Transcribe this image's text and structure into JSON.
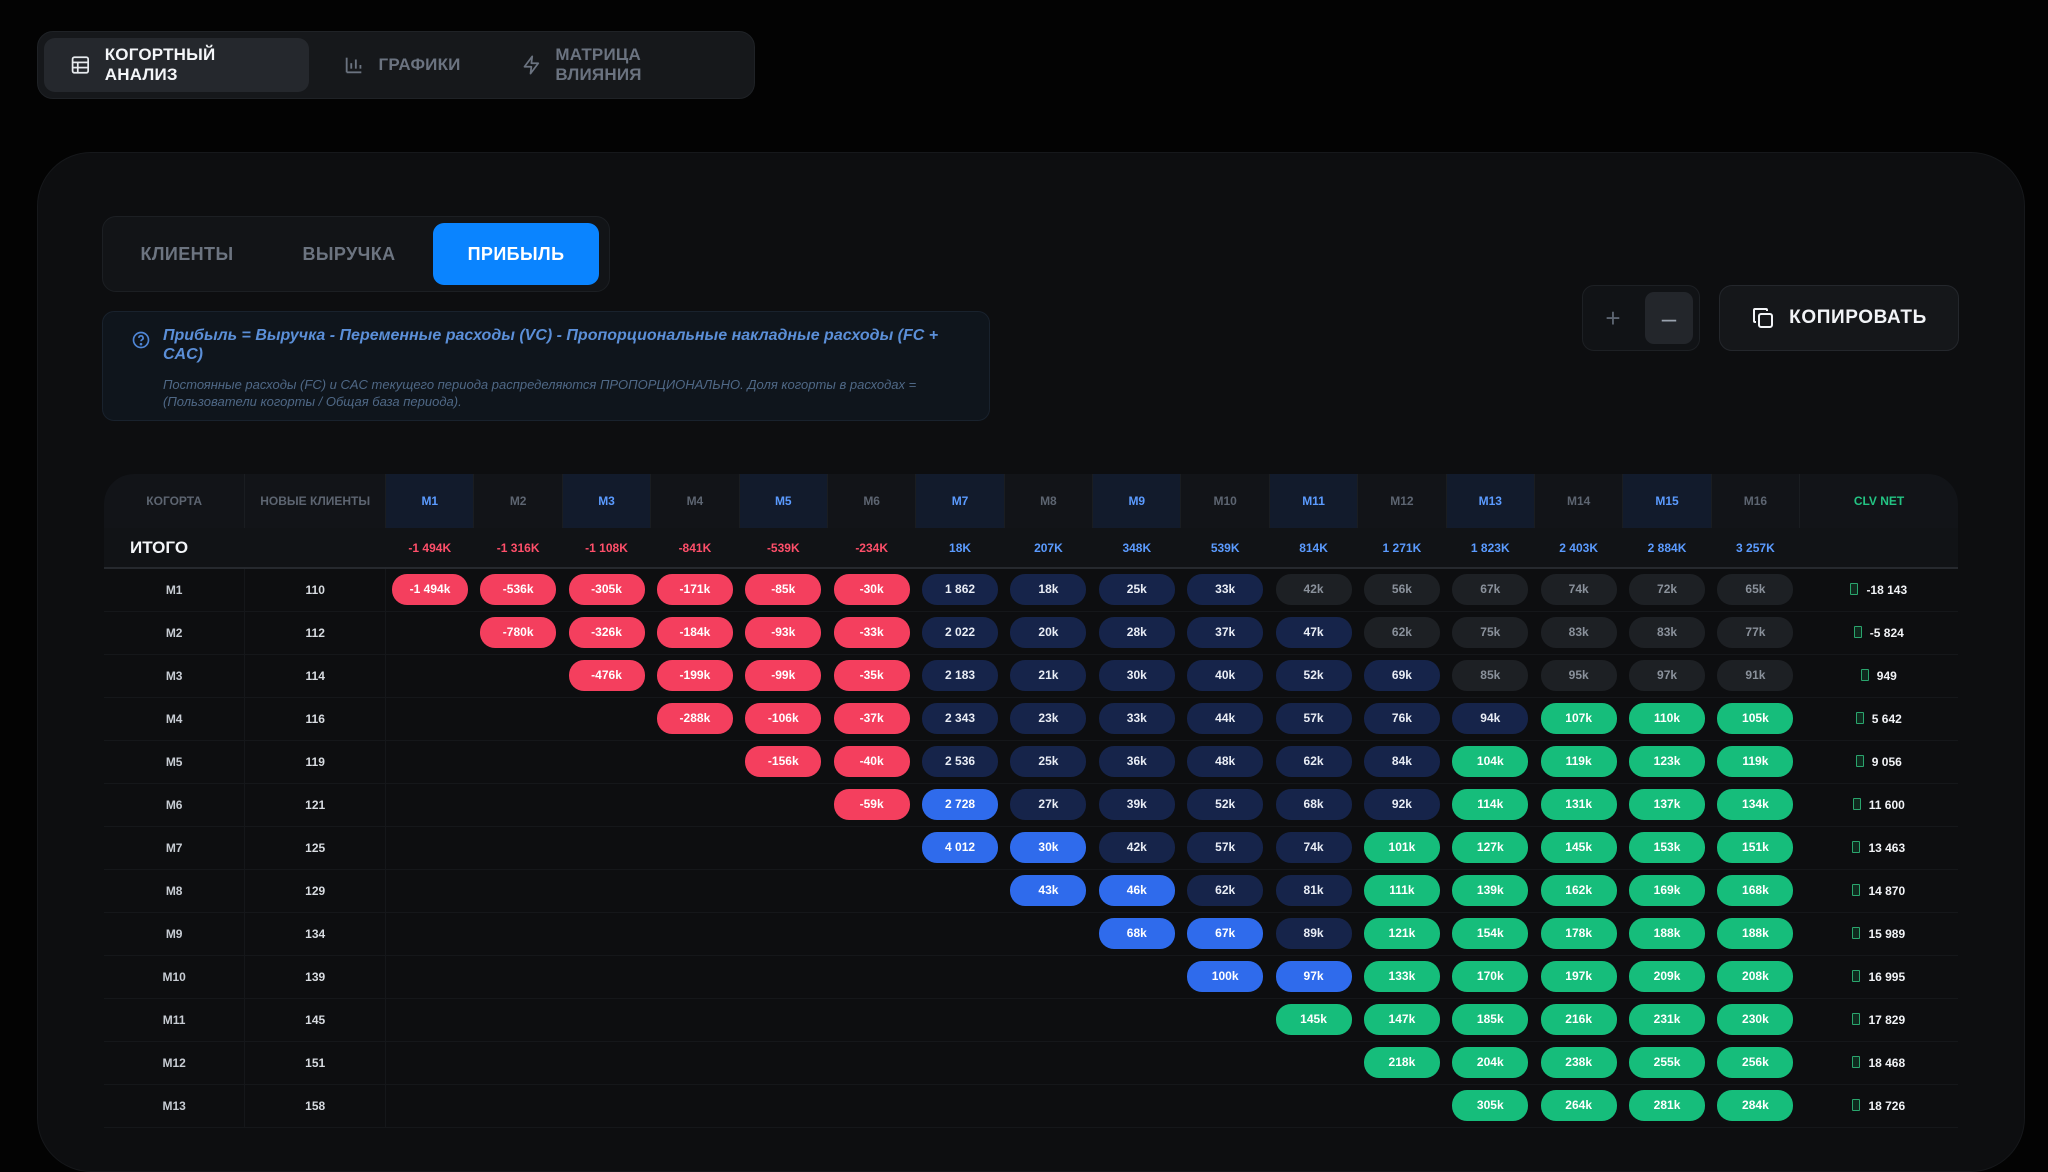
{
  "top_tabs": [
    {
      "label": "КОГОРТНЫЙ АНАЛИЗ",
      "icon": "table-icon",
      "active": true
    },
    {
      "label": "ГРАФИКИ",
      "icon": "bar-chart-icon",
      "active": false
    },
    {
      "label": "МАТРИЦА ВЛИЯНИЯ",
      "icon": "lightning-icon",
      "active": false
    }
  ],
  "segments": [
    {
      "label": "КЛИЕНТЫ",
      "active": false
    },
    {
      "label": "ВЫРУЧКА",
      "active": false
    },
    {
      "label": "ПРИБЫЛЬ",
      "active": true
    }
  ],
  "info": {
    "title": "Прибыль = Выручка - Переменные расходы (VC) - Пропорциональные накладные расходы (FC + CAC)",
    "subtitle": "Постоянные расходы (FC) и CAC текущего периода распределяются ПРОПОРЦИОНАЛЬНО. Доля когорты в расходах = (Пользователи когорты / Общая база периода)."
  },
  "zoom": {
    "plus": "+",
    "minus": "–"
  },
  "copy_label": "КОПИРОВАТЬ",
  "table": {
    "col_cohort": "КОГОРТА",
    "col_new": "НОВЫЕ КЛИЕНТЫ",
    "col_clv": "CLV NET",
    "months": [
      "M1",
      "M2",
      "M3",
      "M4",
      "M5",
      "M6",
      "M7",
      "M8",
      "M9",
      "M10",
      "M11",
      "M12",
      "M13",
      "M14",
      "M15",
      "M16"
    ],
    "highlight_months": [
      0,
      2,
      4,
      6,
      8,
      10,
      12,
      14
    ],
    "total_label": "ИТОГО",
    "totals": [
      "-1 494K",
      "-1 316K",
      "-1 108K",
      "-841K",
      "-539K",
      "-234K",
      "18K",
      "207K",
      "348K",
      "539K",
      "814K",
      "1 271K",
      "1 823K",
      "2 403K",
      "2 884K",
      "3 257K"
    ],
    "rows": [
      {
        "cohort": "M1",
        "new": "110",
        "start": 0,
        "cells": [
          [
            "-1 494k",
            "red"
          ],
          [
            "-536k",
            "red"
          ],
          [
            "-305k",
            "red"
          ],
          [
            "-171k",
            "red"
          ],
          [
            "-85k",
            "red"
          ],
          [
            "-30k",
            "red"
          ],
          [
            "1 862",
            "navy"
          ],
          [
            "18k",
            "navy"
          ],
          [
            "25k",
            "navy"
          ],
          [
            "33k",
            "navy"
          ],
          [
            "42k",
            "gray"
          ],
          [
            "56k",
            "gray"
          ],
          [
            "67k",
            "gray"
          ],
          [
            "74k",
            "gray"
          ],
          [
            "72k",
            "gray"
          ],
          [
            "65k",
            "gray"
          ]
        ],
        "clv": "-18 143"
      },
      {
        "cohort": "M2",
        "new": "112",
        "start": 1,
        "cells": [
          [
            "-780k",
            "red"
          ],
          [
            "-326k",
            "red"
          ],
          [
            "-184k",
            "red"
          ],
          [
            "-93k",
            "red"
          ],
          [
            "-33k",
            "red"
          ],
          [
            "2 022",
            "navy"
          ],
          [
            "20k",
            "navy"
          ],
          [
            "28k",
            "navy"
          ],
          [
            "37k",
            "navy"
          ],
          [
            "47k",
            "navy"
          ],
          [
            "62k",
            "gray"
          ],
          [
            "75k",
            "gray"
          ],
          [
            "83k",
            "gray"
          ],
          [
            "83k",
            "gray"
          ],
          [
            "77k",
            "gray"
          ]
        ],
        "clv": "-5 824"
      },
      {
        "cohort": "M3",
        "new": "114",
        "start": 2,
        "cells": [
          [
            "-476k",
            "red"
          ],
          [
            "-199k",
            "red"
          ],
          [
            "-99k",
            "red"
          ],
          [
            "-35k",
            "red"
          ],
          [
            "2 183",
            "navy"
          ],
          [
            "21k",
            "navy"
          ],
          [
            "30k",
            "navy"
          ],
          [
            "40k",
            "navy"
          ],
          [
            "52k",
            "navy"
          ],
          [
            "69k",
            "navy"
          ],
          [
            "85k",
            "gray"
          ],
          [
            "95k",
            "gray"
          ],
          [
            "97k",
            "gray"
          ],
          [
            "91k",
            "gray"
          ]
        ],
        "clv": "949"
      },
      {
        "cohort": "M4",
        "new": "116",
        "start": 3,
        "cells": [
          [
            "-288k",
            "red"
          ],
          [
            "-106k",
            "red"
          ],
          [
            "-37k",
            "red"
          ],
          [
            "2 343",
            "navy"
          ],
          [
            "23k",
            "navy"
          ],
          [
            "33k",
            "navy"
          ],
          [
            "44k",
            "navy"
          ],
          [
            "57k",
            "navy"
          ],
          [
            "76k",
            "navy"
          ],
          [
            "94k",
            "navy"
          ],
          [
            "107k",
            "green"
          ],
          [
            "110k",
            "green"
          ],
          [
            "105k",
            "green"
          ]
        ],
        "clv": "5 642"
      },
      {
        "cohort": "M5",
        "new": "119",
        "start": 4,
        "cells": [
          [
            "-156k",
            "red"
          ],
          [
            "-40k",
            "red"
          ],
          [
            "2 536",
            "navy"
          ],
          [
            "25k",
            "navy"
          ],
          [
            "36k",
            "navy"
          ],
          [
            "48k",
            "navy"
          ],
          [
            "62k",
            "navy"
          ],
          [
            "84k",
            "navy"
          ],
          [
            "104k",
            "green"
          ],
          [
            "119k",
            "green"
          ],
          [
            "123k",
            "green"
          ],
          [
            "119k",
            "green"
          ]
        ],
        "clv": "9 056"
      },
      {
        "cohort": "M6",
        "new": "121",
        "start": 5,
        "cells": [
          [
            "-59k",
            "red"
          ],
          [
            "2 728",
            "blue"
          ],
          [
            "27k",
            "navy"
          ],
          [
            "39k",
            "navy"
          ],
          [
            "52k",
            "navy"
          ],
          [
            "68k",
            "navy"
          ],
          [
            "92k",
            "navy"
          ],
          [
            "114k",
            "green"
          ],
          [
            "131k",
            "green"
          ],
          [
            "137k",
            "green"
          ],
          [
            "134k",
            "green"
          ]
        ],
        "clv": "11 600"
      },
      {
        "cohort": "M7",
        "new": "125",
        "start": 6,
        "cells": [
          [
            "4 012",
            "blue"
          ],
          [
            "30k",
            "blue"
          ],
          [
            "42k",
            "navy"
          ],
          [
            "57k",
            "navy"
          ],
          [
            "74k",
            "navy"
          ],
          [
            "101k",
            "green"
          ],
          [
            "127k",
            "green"
          ],
          [
            "145k",
            "green"
          ],
          [
            "153k",
            "green"
          ],
          [
            "151k",
            "green"
          ]
        ],
        "clv": "13 463"
      },
      {
        "cohort": "M8",
        "new": "129",
        "start": 7,
        "cells": [
          [
            "43k",
            "blue"
          ],
          [
            "46k",
            "blue"
          ],
          [
            "62k",
            "navy"
          ],
          [
            "81k",
            "navy"
          ],
          [
            "111k",
            "green"
          ],
          [
            "139k",
            "green"
          ],
          [
            "162k",
            "green"
          ],
          [
            "169k",
            "green"
          ],
          [
            "168k",
            "green"
          ]
        ],
        "clv": "14 870"
      },
      {
        "cohort": "M9",
        "new": "134",
        "start": 8,
        "cells": [
          [
            "68k",
            "blue"
          ],
          [
            "67k",
            "blue"
          ],
          [
            "89k",
            "navy"
          ],
          [
            "121k",
            "green"
          ],
          [
            "154k",
            "green"
          ],
          [
            "178k",
            "green"
          ],
          [
            "188k",
            "green"
          ],
          [
            "188k",
            "green"
          ]
        ],
        "clv": "15 989"
      },
      {
        "cohort": "M10",
        "new": "139",
        "start": 9,
        "cells": [
          [
            "100k",
            "blue"
          ],
          [
            "97k",
            "blue"
          ],
          [
            "133k",
            "green"
          ],
          [
            "170k",
            "green"
          ],
          [
            "197k",
            "green"
          ],
          [
            "209k",
            "green"
          ],
          [
            "208k",
            "green"
          ]
        ],
        "clv": "16 995"
      },
      {
        "cohort": "M11",
        "new": "145",
        "start": 10,
        "cells": [
          [
            "145k",
            "green"
          ],
          [
            "147k",
            "green"
          ],
          [
            "185k",
            "green"
          ],
          [
            "216k",
            "green"
          ],
          [
            "231k",
            "green"
          ],
          [
            "230k",
            "green"
          ]
        ],
        "clv": "17 829"
      },
      {
        "cohort": "M12",
        "new": "151",
        "start": 11,
        "cells": [
          [
            "218k",
            "green"
          ],
          [
            "204k",
            "green"
          ],
          [
            "238k",
            "green"
          ],
          [
            "255k",
            "green"
          ],
          [
            "256k",
            "green"
          ]
        ],
        "clv": "18 468"
      },
      {
        "cohort": "M13",
        "new": "158",
        "start": 12,
        "cells": [
          [
            "305k",
            "green"
          ],
          [
            "264k",
            "green"
          ],
          [
            "281k",
            "green"
          ],
          [
            "284k",
            "green"
          ]
        ],
        "clv": "18 726"
      }
    ]
  }
}
